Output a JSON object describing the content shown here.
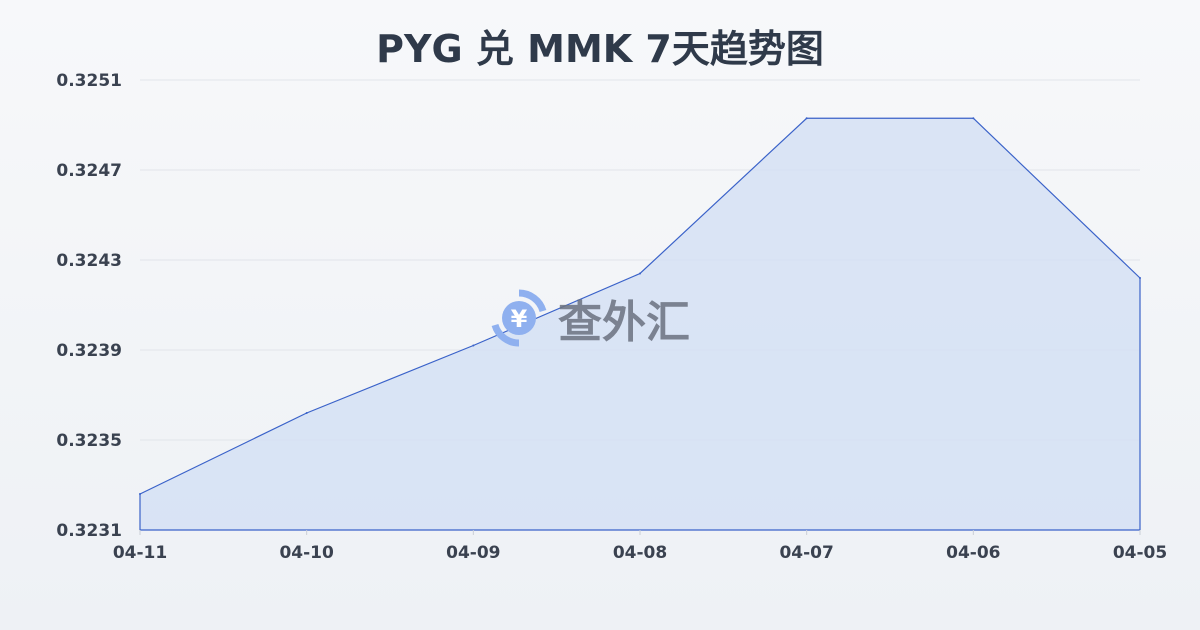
{
  "chart_data": {
    "type": "area",
    "title": "PYG 兑 MMK 7天趋势图",
    "categories": [
      "04-11",
      "04-10",
      "04-09",
      "04-08",
      "04-07",
      "04-06",
      "04-05"
    ],
    "series": [
      {
        "values": [
          0.32326,
          0.32362,
          0.32392,
          0.32424,
          0.32493,
          0.32493,
          0.32422
        ]
      }
    ],
    "yticks": [
      "0.3231",
      "0.3235",
      "0.3239",
      "0.3243",
      "0.3247",
      "0.3251"
    ],
    "ylim": [
      0.3231,
      0.3251
    ],
    "grid": true,
    "line_color": "#3a62c9",
    "fill_color": "#d5e0f5"
  },
  "watermark": {
    "text": "查外汇",
    "icon": "yen-exchange-icon"
  }
}
